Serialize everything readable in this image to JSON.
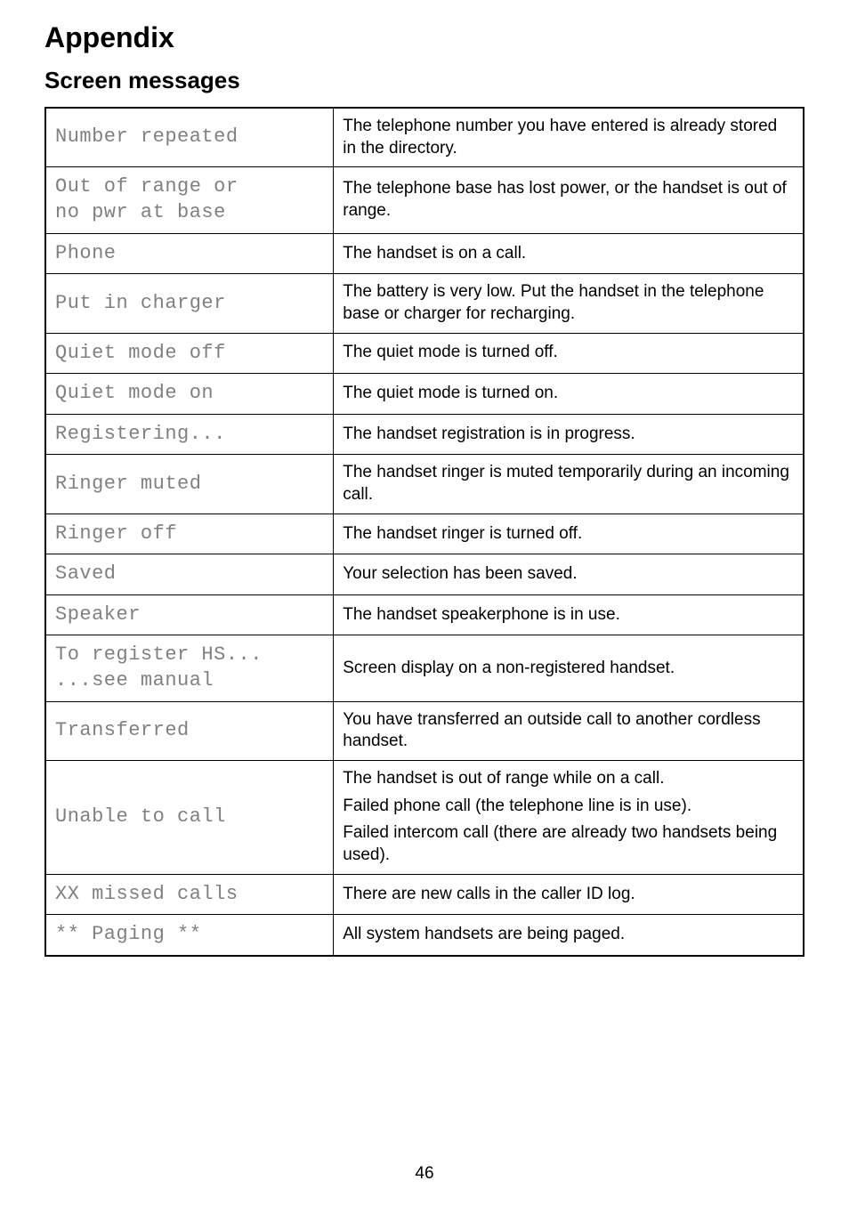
{
  "page": {
    "title": "Appendix",
    "subtitle": "Screen messages",
    "number": "46"
  },
  "table": {
    "rows": [
      {
        "msg": "Number repeated",
        "desc": "The telephone number you have entered is already stored in the directory."
      },
      {
        "msg": "Out of range or\nno pwr at base",
        "desc": "The telephone base has lost power, or the handset is out of range."
      },
      {
        "msg": "Phone",
        "desc": "The handset is on a call."
      },
      {
        "msg": "Put in charger",
        "desc": "The battery is very low. Put the handset in the telephone base or charger for recharging."
      },
      {
        "msg": "Quiet mode off",
        "desc": "The quiet mode is turned off."
      },
      {
        "msg": "Quiet mode on",
        "desc": "The quiet mode is turned on."
      },
      {
        "msg": "Registering...",
        "desc": "The handset registration is in progress."
      },
      {
        "msg": "Ringer muted",
        "desc": "The handset ringer is muted temporarily during an incoming call."
      },
      {
        "msg": "Ringer off",
        "desc": "The handset ringer is turned off."
      },
      {
        "msg": "Saved",
        "desc": "Your selection has been saved."
      },
      {
        "msg": "Speaker",
        "desc": "The handset speakerphone is in use."
      },
      {
        "msg": "To register HS...\n...see manual",
        "desc": "Screen display on a non-registered handset."
      },
      {
        "msg": "Transferred",
        "desc": "You have transferred an outside call to another cordless handset."
      },
      {
        "msg": "Unable to call",
        "desc": "The handset is out of range while on a call.\nFailed phone call (the telephone line is in use).\nFailed intercom call (there are already two handsets being used)."
      },
      {
        "msg": "XX missed calls",
        "desc": "There are new calls in the caller ID log."
      },
      {
        "msg": "** Paging **",
        "desc": "All system handsets are being paged."
      }
    ]
  }
}
